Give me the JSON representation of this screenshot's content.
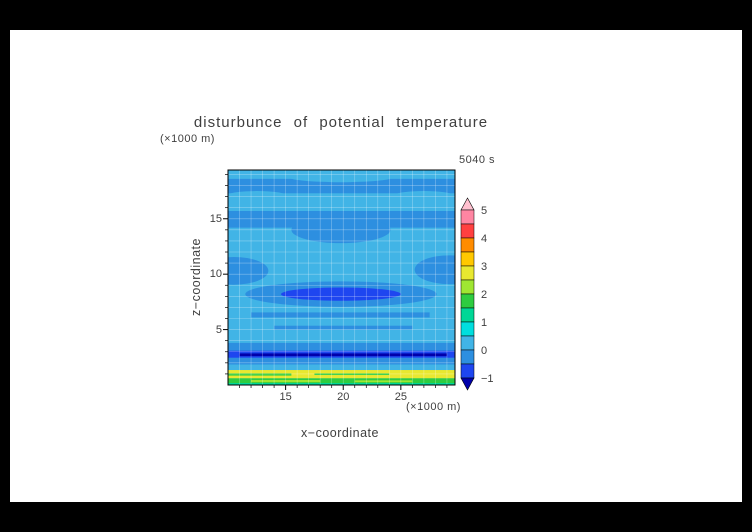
{
  "frame": {
    "border_color": "#000000",
    "canvas_color": "#ffffff"
  },
  "title": "disturbunce of potential temperature",
  "time_label": "5040 s",
  "axes": {
    "x": {
      "label": "x−coordinate",
      "unit": "(×1000 m)",
      "range": [
        10,
        29.7
      ],
      "major_ticks": [
        15,
        20,
        25
      ],
      "minor_tick_step": 1
    },
    "y": {
      "label": "z−coordinate",
      "unit": "(×1000 m)",
      "range": [
        0,
        19.4
      ],
      "major_ticks": [
        5,
        10,
        15
      ],
      "minor_tick_step": 1
    }
  },
  "chart_data": {
    "type": "heatmap",
    "title": "disturbunce of potential temperature",
    "time": "5040 s",
    "xlabel": "x−coordinate",
    "ylabel": "z−coordinate",
    "x_unit": "(×1000 m)",
    "y_unit": "(×1000 m)",
    "x_range": [
      10,
      29.7
    ],
    "y_range": [
      0,
      19.4
    ],
    "grid": true,
    "grid_color": "rgba(255,255,255,0.4)",
    "frame_color": "#000000",
    "background_value": 0.25,
    "levels": {
      "min": -1,
      "max": 5,
      "step": 0.5
    },
    "palette": {
      "below": "#0000aa",
      "colors": [
        "#1e46f0",
        "#2d8fe0",
        "#41b4e6",
        "#00dede",
        "#00d796",
        "#2ecc40",
        "#9fe632",
        "#e8e830",
        "#ffc800",
        "#ff8c00",
        "#ff4040",
        "#ff85a2"
      ],
      "above": "#ffc0cf"
    },
    "colorbar": {
      "ticks": [
        5,
        4,
        3,
        2,
        1,
        0,
        -1
      ],
      "tick_labels": [
        "5",
        "4",
        "3",
        "2",
        "1",
        "0",
        "−1"
      ]
    },
    "features": [
      {
        "shape": "band",
        "y": [
          17.3,
          18.6
        ],
        "x": [
          10,
          29.7
        ],
        "value": -0.25
      },
      {
        "shape": "ellipse",
        "cx": 19.8,
        "cy": 18.75,
        "rx": 4.5,
        "ry": 0.45,
        "value": 0.25
      },
      {
        "shape": "ellipse",
        "cx": 12.5,
        "cy": 17.15,
        "rx": 2.5,
        "ry": 0.35,
        "value": 0.25
      },
      {
        "shape": "ellipse",
        "cx": 27.0,
        "cy": 17.15,
        "rx": 2.5,
        "ry": 0.35,
        "value": 0.25
      },
      {
        "shape": "band",
        "y": [
          14.2,
          15.7
        ],
        "x": [
          10,
          29.7
        ],
        "value": -0.25
      },
      {
        "shape": "ellipse",
        "cx": 19.8,
        "cy": 14.0,
        "rx": 4.3,
        "ry": 1.2,
        "value": -0.25
      },
      {
        "shape": "ellipse",
        "cx": 10.5,
        "cy": 10.3,
        "rx": 3.0,
        "ry": 1.25,
        "value": -0.25
      },
      {
        "shape": "ellipse",
        "cx": 29.2,
        "cy": 10.4,
        "rx": 3.0,
        "ry": 1.3,
        "value": -0.25
      },
      {
        "shape": "ellipse",
        "cx": 19.8,
        "cy": 8.2,
        "rx": 8.3,
        "ry": 1.15,
        "value": -0.25
      },
      {
        "shape": "ellipse",
        "cx": 19.8,
        "cy": 8.2,
        "rx": 5.2,
        "ry": 0.6,
        "value": -0.75
      },
      {
        "shape": "band",
        "y": [
          6.1,
          6.55
        ],
        "x": [
          12,
          27.5
        ],
        "value": -0.25
      },
      {
        "shape": "band",
        "y": [
          5.0,
          5.35
        ],
        "x": [
          14,
          26
        ],
        "value": -0.25
      },
      {
        "shape": "band",
        "y": [
          3.1,
          3.8
        ],
        "x": [
          10,
          29.7
        ],
        "value": -0.25
      },
      {
        "shape": "band",
        "y": [
          2.45,
          3.1
        ],
        "x": [
          10,
          29.7
        ],
        "value": -0.75
      },
      {
        "shape": "band",
        "y": [
          2.6,
          2.85
        ],
        "x": [
          11,
          29
        ],
        "value": -1.25
      },
      {
        "shape": "band",
        "y": [
          1.85,
          2.45
        ],
        "x": [
          10,
          29.7
        ],
        "value": -0.25
      },
      {
        "shape": "band",
        "y": [
          0.6,
          1.35
        ],
        "x": [
          10,
          29.7
        ],
        "value": 2.75
      },
      {
        "shape": "band",
        "y": [
          0.85,
          1.05
        ],
        "x": [
          10,
          15.5
        ],
        "value": 1.75
      },
      {
        "shape": "band",
        "y": [
          0.9,
          1.05
        ],
        "x": [
          17.5,
          24.0
        ],
        "value": 1.75
      },
      {
        "shape": "band",
        "y": [
          0.0,
          0.6
        ],
        "x": [
          10,
          29.7
        ],
        "value": 1.75
      },
      {
        "shape": "band",
        "y": [
          0.25,
          0.45
        ],
        "x": [
          12,
          18
        ],
        "value": 2.25
      },
      {
        "shape": "band",
        "y": [
          0.25,
          0.42
        ],
        "x": [
          21,
          26
        ],
        "value": 2.25
      },
      {
        "shape": "band",
        "y": [
          0.0,
          0.18
        ],
        "x": [
          10,
          29.7
        ],
        "value": 1.25
      }
    ]
  }
}
